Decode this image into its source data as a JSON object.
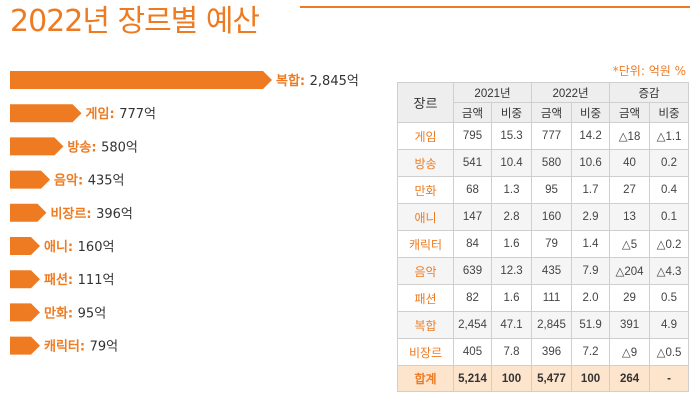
{
  "page": {
    "title": "2022년 장르별 예산",
    "unit_note": "*단위: 억원 %"
  },
  "colors": {
    "accent": "#ee7b22",
    "bar": "#ee7b22",
    "header_bg": "#eeeeee",
    "total_bg": "#fde4cd"
  },
  "chart_data": {
    "type": "bar",
    "orientation": "horizontal",
    "categories": [
      "복합",
      "게임",
      "방송",
      "음악",
      "비장르",
      "애니",
      "패션",
      "만화",
      "캐릭터"
    ],
    "values": [
      2845,
      777,
      580,
      435,
      396,
      160,
      111,
      95,
      79
    ],
    "value_labels": [
      "2,845억",
      "777억",
      "580억",
      "435억",
      "396억",
      "160억",
      "111억",
      "95억",
      "79억"
    ],
    "title": "",
    "xlabel": "",
    "ylabel": ""
  },
  "table": {
    "headers": {
      "genre": "장르",
      "y2021": "2021년",
      "y2022": "2022년",
      "change": "증감",
      "amount": "금액",
      "share": "비중"
    },
    "rows": [
      {
        "genre": "게임",
        "a2021": "795",
        "s2021": "15.3",
        "a2022": "777",
        "s2022": "14.2",
        "ca": "△18",
        "cs": "△1.1"
      },
      {
        "genre": "방송",
        "a2021": "541",
        "s2021": "10.4",
        "a2022": "580",
        "s2022": "10.6",
        "ca": "40",
        "cs": "0.2"
      },
      {
        "genre": "만화",
        "a2021": "68",
        "s2021": "1.3",
        "a2022": "95",
        "s2022": "1.7",
        "ca": "27",
        "cs": "0.4"
      },
      {
        "genre": "애니",
        "a2021": "147",
        "s2021": "2.8",
        "a2022": "160",
        "s2022": "2.9",
        "ca": "13",
        "cs": "0.1"
      },
      {
        "genre": "캐릭터",
        "a2021": "84",
        "s2021": "1.6",
        "a2022": "79",
        "s2022": "1.4",
        "ca": "△5",
        "cs": "△0.2"
      },
      {
        "genre": "음악",
        "a2021": "639",
        "s2021": "12.3",
        "a2022": "435",
        "s2022": "7.9",
        "ca": "△204",
        "cs": "△4.3"
      },
      {
        "genre": "패션",
        "a2021": "82",
        "s2021": "1.6",
        "a2022": "111",
        "s2022": "2.0",
        "ca": "29",
        "cs": "0.5"
      },
      {
        "genre": "복합",
        "a2021": "2,454",
        "s2021": "47.1",
        "a2022": "2,845",
        "s2022": "51.9",
        "ca": "391",
        "cs": "4.9"
      },
      {
        "genre": "비장르",
        "a2021": "405",
        "s2021": "7.8",
        "a2022": "396",
        "s2022": "7.2",
        "ca": "△9",
        "cs": "△0.5"
      }
    ],
    "total": {
      "genre": "합계",
      "a2021": "5,214",
      "s2021": "100",
      "a2022": "5,477",
      "s2022": "100",
      "ca": "264",
      "cs": "-"
    }
  }
}
